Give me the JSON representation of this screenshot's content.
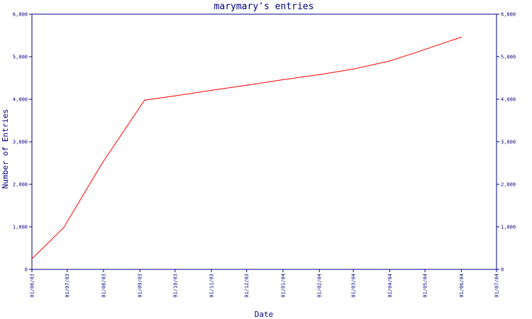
{
  "chart_data": {
    "type": "line",
    "title": "marymary's entries",
    "xlabel": "Date",
    "ylabel": "Number of Entries",
    "ylim": [
      0,
      6000
    ],
    "y_ticks": [
      "0",
      "1,000",
      "2,000",
      "3,000",
      "4,000",
      "5,000",
      "6,000"
    ],
    "y_ticks_right": [
      "0",
      "1,000",
      "2,000",
      "3,000",
      "4,000",
      "5,000",
      "6,000"
    ],
    "x_ticks": [
      "01/06/03",
      "01/07/03",
      "01/08/03",
      "01/09/03",
      "01/10/03",
      "01/11/03",
      "01/12/03",
      "01/01/04",
      "01/02/04",
      "01/03/04",
      "01/04/04",
      "01/05/04",
      "01/06/04",
      "01/07/04"
    ],
    "series": [
      {
        "color": "#ff0000",
        "points": [
          {
            "x": "2003-06-01",
            "y": 250
          },
          {
            "x": "2003-06-28",
            "y": 980
          },
          {
            "x": "2003-07-31",
            "y": 2500
          },
          {
            "x": "2003-09-05",
            "y": 3980
          },
          {
            "x": "2003-10-01",
            "y": 4080
          },
          {
            "x": "2003-11-01",
            "y": 4210
          },
          {
            "x": "2003-12-01",
            "y": 4330
          },
          {
            "x": "2004-01-01",
            "y": 4460
          },
          {
            "x": "2004-02-01",
            "y": 4580
          },
          {
            "x": "2004-03-01",
            "y": 4710
          },
          {
            "x": "2004-04-01",
            "y": 4900
          },
          {
            "x": "2004-04-20",
            "y": 5070
          },
          {
            "x": "2004-06-01",
            "y": 5460
          }
        ]
      }
    ],
    "grid": false,
    "axis_color": "#000080",
    "line_color": "#ff0000"
  }
}
